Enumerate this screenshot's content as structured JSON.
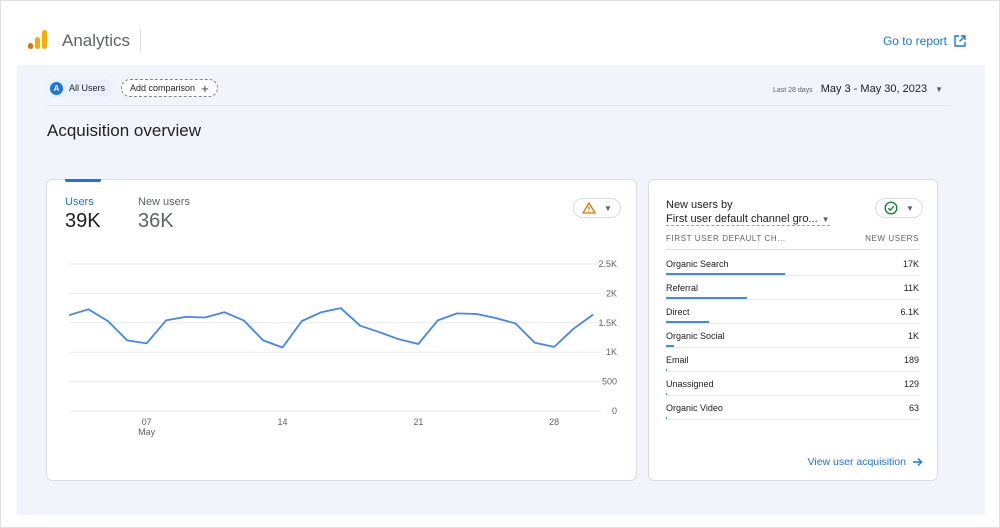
{
  "header": {
    "app_title": "Analytics",
    "go_to_report": "Go to report",
    "logo_colors": [
      "#f9ab00",
      "#e37400",
      "#e37400"
    ]
  },
  "filters": {
    "segment_initial": "A",
    "segment_label": "All Users",
    "add_comparison": "Add comparison",
    "date_label": "Last 28 days",
    "date_range": "May 3 - May 30, 2023"
  },
  "page_title": "Acquisition overview",
  "metrics": [
    {
      "label": "Users",
      "value": "39K",
      "active": true
    },
    {
      "label": "New users",
      "value": "36K",
      "active": false
    }
  ],
  "warning_icon": "warning-icon",
  "check_icon": "check-circle-icon",
  "chart_data": {
    "type": "line",
    "x_tick_labels": [
      "07",
      "14",
      "21",
      "28"
    ],
    "x_sublabel": "May",
    "y_tick_labels": [
      "2.5K",
      "2K",
      "1.5K",
      "1K",
      "500",
      "0"
    ],
    "ylim": [
      0,
      2500
    ],
    "grid": true,
    "color": "#4285f4",
    "series": [
      {
        "x": [
          "May 3",
          "May 4",
          "May 5",
          "May 6",
          "May 7",
          "May 8",
          "May 9",
          "May 10",
          "May 11",
          "May 12",
          "May 13",
          "May 14",
          "May 15",
          "May 16",
          "May 17",
          "May 18",
          "May 19",
          "May 20",
          "May 21",
          "May 22",
          "May 23",
          "May 24",
          "May 25",
          "May 26",
          "May 27",
          "May 28",
          "May 29",
          "May 30"
        ],
        "values": [
          1630,
          1730,
          1530,
          1200,
          1150,
          1540,
          1600,
          1590,
          1680,
          1540,
          1200,
          1080,
          1530,
          1680,
          1750,
          1450,
          1340,
          1220,
          1140,
          1540,
          1660,
          1650,
          1580,
          1490,
          1160,
          1090,
          1400,
          1640
        ]
      }
    ]
  },
  "channels": {
    "title_line1": "New users by",
    "title_line2": "First user default channel gro...",
    "col_name": "FIRST USER DEFAULT CH...",
    "col_value": "NEW USERS",
    "rows": [
      {
        "name": "Organic Search",
        "value": "17K",
        "share": 0.47
      },
      {
        "name": "Referral",
        "value": "11K",
        "share": 0.32
      },
      {
        "name": "Direct",
        "value": "6.1K",
        "share": 0.17
      },
      {
        "name": "Organic Social",
        "value": "1K",
        "share": 0.03
      },
      {
        "name": "Email",
        "value": "189",
        "share": 0.005
      },
      {
        "name": "Unassigned",
        "value": "129",
        "share": 0.004
      },
      {
        "name": "Organic Video",
        "value": "63",
        "share": 0.002
      }
    ],
    "view_link": "View user acquisition"
  }
}
